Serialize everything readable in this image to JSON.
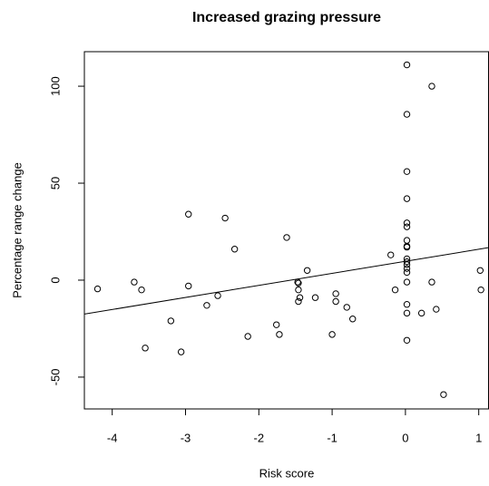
{
  "chart_data": {
    "type": "scatter",
    "title": "Increased grazing pressure",
    "x_label": "Risk score",
    "y_label": "Percentage range change",
    "xlim": [
      -4.38,
      1.14
    ],
    "ylim": [
      -66.4,
      117.8
    ],
    "xticks": [
      -4,
      -3,
      -2,
      -1,
      0,
      1
    ],
    "yticks": [
      -50,
      0,
      50,
      100
    ],
    "color": "#000000",
    "x": [
      -4.2,
      -3.7,
      -3.6,
      -3.55,
      -3.2,
      -3.06,
      -2.96,
      -2.96,
      -2.71,
      -2.56,
      -2.46,
      -2.33,
      -2.15,
      -1.76,
      -1.72,
      -1.62,
      -1.47,
      -1.46,
      -1.46,
      -1.46,
      -1.44,
      -1.34,
      -1.23,
      -1.0,
      -0.95,
      -0.95,
      -0.8,
      -0.72,
      -0.2,
      -0.14,
      0.02,
      0.02,
      0.02,
      0.02,
      0.02,
      0.02,
      0.02,
      0.02,
      0.02,
      0.02,
      0.02,
      0.02,
      0.02,
      0.02,
      0.02,
      0.02,
      0.02,
      0.02,
      0.22,
      0.36,
      0.36,
      0.42,
      0.52,
      1.02,
      1.03
    ],
    "y": [
      -4.5,
      -1,
      -5,
      -35,
      -21,
      -37,
      34,
      -3,
      -13,
      -8,
      32,
      16,
      -29,
      -23,
      -28,
      22,
      -1,
      -1.5,
      -5,
      -11,
      -9,
      5,
      -9,
      -28,
      -7,
      -11,
      -14,
      -20,
      13,
      -5,
      111,
      85.5,
      56,
      42,
      29.5,
      27.5,
      20.5,
      17.5,
      17,
      11,
      9.5,
      8,
      6,
      4,
      -1,
      -12.5,
      -17,
      -31,
      -17,
      100,
      -1,
      -15,
      -59,
      5,
      -5
    ],
    "fit_line": {
      "x": [
        -4.38,
        1.14
      ],
      "y": [
        -17.5,
        16.8
      ]
    }
  }
}
